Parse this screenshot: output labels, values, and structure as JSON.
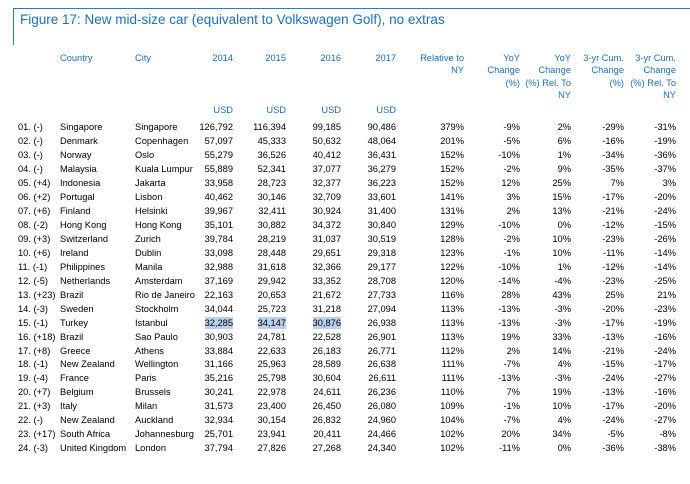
{
  "title": "Figure 17: New mid-size car (equivalent to Volkswagen Golf), no extras",
  "table": {
    "header": [
      [
        "Country"
      ],
      [
        "City"
      ],
      [
        "2014"
      ],
      [
        "2015"
      ],
      [
        "2016"
      ],
      [
        "2017"
      ],
      [
        "Relative to",
        "NY"
      ],
      [
        "YoY",
        "Change",
        "(%)"
      ],
      [
        "YoY",
        "Change",
        "(%) Rel. To",
        "NY"
      ],
      [
        "3-yr Cum.",
        "Change",
        "(%)"
      ],
      [
        "3-yr Cum.",
        "Change",
        "(%) Rel. To",
        "NY"
      ]
    ],
    "units": [
      "USD",
      "USD",
      "USD",
      "USD"
    ],
    "rows": [
      [
        "01. (-)",
        "Singapore",
        "Singapore",
        "126,792",
        "116,394",
        "99,185",
        "90,486",
        "379%",
        "-9%",
        "2%",
        "-29%",
        "-31%"
      ],
      [
        "02. (-)",
        "Denmark",
        "Copenhagen",
        "57,097",
        "45,333",
        "50,632",
        "48,064",
        "201%",
        "-5%",
        "6%",
        "-16%",
        "-19%"
      ],
      [
        "03. (-)",
        "Norway",
        "Oslo",
        "55,279",
        "36,526",
        "40,412",
        "36,431",
        "152%",
        "-10%",
        "1%",
        "-34%",
        "-36%"
      ],
      [
        "04. (-)",
        "Malaysia",
        "Kuala Lumpur",
        "55,889",
        "52,341",
        "37,077",
        "36,279",
        "152%",
        "-2%",
        "9%",
        "-35%",
        "-37%"
      ],
      [
        "05. (+4)",
        "Indonesia",
        "Jakarta",
        "33,958",
        "28,723",
        "32,377",
        "36,223",
        "152%",
        "12%",
        "25%",
        "7%",
        "3%"
      ],
      [
        "06. (+2)",
        "Portugal",
        "Lisbon",
        "40,462",
        "30,146",
        "32,709",
        "33,601",
        "141%",
        "3%",
        "15%",
        "-17%",
        "-20%"
      ],
      [
        "07. (+6)",
        "Finland",
        "Helsinki",
        "39,967",
        "32,411",
        "30,924",
        "31,400",
        "131%",
        "2%",
        "13%",
        "-21%",
        "-24%"
      ],
      [
        "08. (-2)",
        "Hong Kong",
        "Hong Kong",
        "35,101",
        "30,882",
        "34,372",
        "30,840",
        "129%",
        "-10%",
        "0%",
        "-12%",
        "-15%"
      ],
      [
        "09. (+3)",
        "Switzerland",
        "Zurich",
        "39,784",
        "28,219",
        "31,037",
        "30,519",
        "128%",
        "-2%",
        "10%",
        "-23%",
        "-26%"
      ],
      [
        "10. (+6)",
        "Ireland",
        "Dublin",
        "33,098",
        "28,448",
        "29,651",
        "29,318",
        "123%",
        "-1%",
        "10%",
        "-11%",
        "-14%"
      ],
      [
        "11. (-1)",
        "Philippines",
        "Manila",
        "32,988",
        "31,618",
        "32,366",
        "29,177",
        "122%",
        "-10%",
        "1%",
        "-12%",
        "-14%"
      ],
      [
        "12. (-5)",
        "Netherlands",
        "Amsterdam",
        "37,169",
        "29,942",
        "33,352",
        "28,708",
        "120%",
        "-14%",
        "-4%",
        "-23%",
        "-25%"
      ],
      [
        "13. (+23)",
        "Brazil",
        "Rio de Janeiro",
        "22,163",
        "20,653",
        "21,672",
        "27,733",
        "116%",
        "28%",
        "43%",
        "25%",
        "21%"
      ],
      [
        "14. (-3)",
        "Sweden",
        "Stockholm",
        "34,044",
        "25,723",
        "31,218",
        "27,094",
        "113%",
        "-13%",
        "-3%",
        "-20%",
        "-23%"
      ],
      [
        "15. (-1)",
        "Turkey",
        "Istanbul",
        "32,285",
        "34,147",
        "30,876",
        "26,938",
        "113%",
        "-13%",
        "-3%",
        "-17%",
        "-19%"
      ],
      [
        "16. (+18)",
        "Brazil",
        "Sao Paulo",
        "30,903",
        "24,781",
        "22,528",
        "26,901",
        "113%",
        "19%",
        "33%",
        "-13%",
        "-16%"
      ],
      [
        "17. (+8)",
        "Greece",
        "Athens",
        "33,884",
        "22,633",
        "26,183",
        "26,771",
        "112%",
        "2%",
        "14%",
        "-21%",
        "-24%"
      ],
      [
        "18. (-1)",
        "New Zealand",
        "Wellington",
        "31,166",
        "25,963",
        "28,589",
        "26,638",
        "111%",
        "-7%",
        "4%",
        "-15%",
        "-17%"
      ],
      [
        "19. (-4)",
        "France",
        "Paris",
        "35,216",
        "25,798",
        "30,604",
        "26,611",
        "111%",
        "-13%",
        "-3%",
        "-24%",
        "-27%"
      ],
      [
        "20. (+7)",
        "Belgium",
        "Brussels",
        "30,241",
        "22,978",
        "24,611",
        "26,236",
        "110%",
        "7%",
        "19%",
        "-13%",
        "-16%"
      ],
      [
        "21. (+3)",
        "Italy",
        "Milan",
        "31,573",
        "23,400",
        "26,450",
        "26,080",
        "109%",
        "-1%",
        "10%",
        "-17%",
        "-20%"
      ],
      [
        "22. (-)",
        "New Zealand",
        "Auckland",
        "32,934",
        "30,154",
        "26,832",
        "24,960",
        "104%",
        "-7%",
        "4%",
        "-24%",
        "-27%"
      ],
      [
        "23. (+17)",
        "South Africa",
        "Johannesburg",
        "25,701",
        "23,941",
        "20,411",
        "24,466",
        "102%",
        "20%",
        "34%",
        "-5%",
        "-8%"
      ],
      [
        "24. (-3)",
        "United Kingdom",
        "London",
        "37,794",
        "27,826",
        "27,268",
        "24,340",
        "102%",
        "-11%",
        "0%",
        "-36%",
        "-38%"
      ]
    ]
  }
}
